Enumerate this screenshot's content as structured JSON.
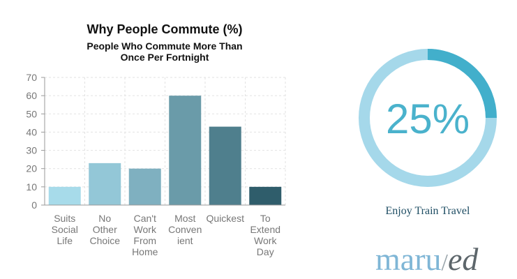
{
  "chart_data": {
    "type": "bar",
    "title": "Why People Commute (%)",
    "subtitle": "People Who Commute More Than Once Per Fortnight",
    "categories": [
      "Suits Social Life",
      "No Other Choice",
      "Can't Work From Home",
      "Most Convenient",
      "Quickest",
      "To Extend Work Day"
    ],
    "category_lines": [
      [
        "Suits",
        "Social",
        "Life"
      ],
      [
        "No",
        "Other",
        "Choice"
      ],
      [
        "Can't",
        "Work",
        "From",
        "Home"
      ],
      [
        "Most",
        "Conven",
        "ient"
      ],
      [
        "Quickest"
      ],
      [
        "To",
        "Extend",
        "Work",
        "Day"
      ]
    ],
    "values": [
      10,
      23,
      20,
      60,
      43,
      10
    ],
    "colors": [
      "#a7dbea",
      "#93c7d7",
      "#7fb0c0",
      "#6a9ba9",
      "#4f7f8d",
      "#2f5d6b"
    ],
    "ylim": [
      0,
      70
    ],
    "yticks": [
      0,
      10,
      20,
      30,
      40,
      50,
      60,
      70
    ],
    "xlabel": "",
    "ylabel": "",
    "grid": true
  },
  "donut": {
    "value": 25,
    "value_text": "25%",
    "caption": "Enjoy Train Travel",
    "track_color": "#a5d8ea",
    "fill_color": "#42afcb"
  },
  "brand": {
    "part1": "maru",
    "separator": "/",
    "part2": "ed"
  }
}
